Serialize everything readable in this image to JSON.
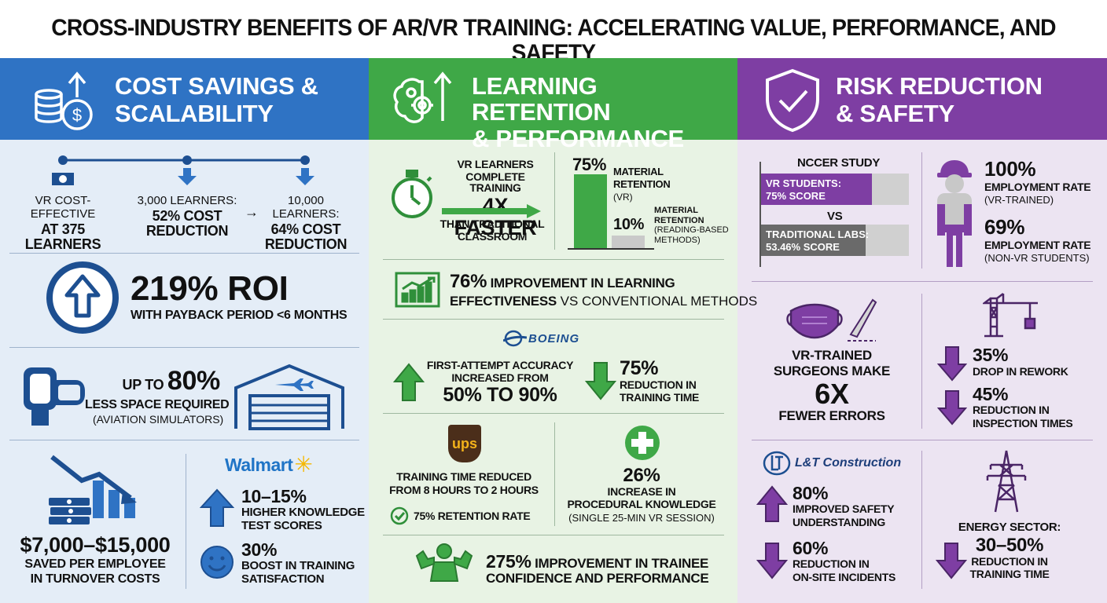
{
  "title": "CROSS-INDUSTRY BENEFITS OF AR/VR TRAINING: ACCELERATING VALUE, PERFORMANCE, AND SAFETY",
  "colors": {
    "blue": "#2f73c4",
    "green": "#3fa847",
    "purple": "#7e3ea3",
    "blue_bg": "#e4edf7",
    "green_bg": "#e8f3e4",
    "purple_bg": "#ece4f2",
    "dark_blue": "#1d4f91"
  },
  "col1": {
    "header": {
      "line1": "COST SAVINGS &",
      "line2": "SCALABILITY",
      "icon": "coins-dollar-arrow-icon"
    },
    "timeline": [
      {
        "line1": "VR COST-EFFECTIVE",
        "line2": "AT 375",
        "line3": "LEARNERS"
      },
      {
        "line1": "3,000 LEARNERS:",
        "line2": "52% COST",
        "line3": "REDUCTION"
      },
      {
        "line1": "10,000 LEARNERS:",
        "line2": "64% COST",
        "line3": "REDUCTION"
      }
    ],
    "roi": {
      "big": "219% ROI",
      "sub": "WITH PAYBACK PERIOD <6 MONTHS"
    },
    "space": {
      "prefix": "UP TO",
      "big": "80%",
      "line2": "LESS SPACE REQUIRED",
      "line3": "(AVIATION SIMULATORS)"
    },
    "turnover": {
      "big": "$7,000–$15,000",
      "line2": "SAVED PER EMPLOYEE",
      "line3": "IN TURNOVER COSTS"
    },
    "walmart": {
      "logo": "Walmart",
      "stat1": "10–15%",
      "stat1_l1": "HIGHER KNOWLEDGE",
      "stat1_l2": "TEST SCORES",
      "stat2": "30%",
      "stat2_l1": "BOOST IN TRAINING",
      "stat2_l2": "SATISFACTION"
    }
  },
  "col2": {
    "header": {
      "line1": "LEARNING RETENTION",
      "line2": "& PERFORMANCE",
      "icon": "brain-gear-icon"
    },
    "faster": {
      "l1": "VR LEARNERS",
      "l2": "COMPLETE TRAINING",
      "big": "4X FASTER",
      "l3": "THAN TRADITIONAL",
      "l4": "CLASSROOM"
    },
    "retention": {
      "vr_value": "75%",
      "vr_l1": "MATERIAL",
      "vr_l2": "RETENTION",
      "vr_l3": "(VR)",
      "rb_value": "10%",
      "rb_l1": "MATERIAL",
      "rb_l2": "RETENTION",
      "rb_l3": "(READING-BASED",
      "rb_l4": "METHODS)"
    },
    "improve": {
      "big": "76%",
      "l1": " IMPROVEMENT IN LEARNING",
      "l2": "EFFECTIVENESS",
      "l3": " VS CONVENTIONAL METHODS"
    },
    "boeing": {
      "logo": "BOEING",
      "acc_l1": "FIRST-ATTEMPT ACCURACY",
      "acc_l2": "INCREASED FROM",
      "acc_big": "50% TO 90%",
      "time_big": "75%",
      "time_l1": "REDUCTION IN",
      "time_l2": "TRAINING TIME"
    },
    "ups": {
      "logo": "ups",
      "l1": "TRAINING TIME REDUCED",
      "l2": "FROM 8 HOURS TO 2 HOURS",
      "retention": "75% RETENTION RATE"
    },
    "proc": {
      "big": "26%",
      "l1": "INCREASE IN",
      "l2": "PROCEDURAL KNOWLEDGE",
      "l3": "(SINGLE 25-MIN VR SESSION)"
    },
    "confidence": {
      "big": "275%",
      "l1": " IMPROVEMENT IN TRAINEE",
      "l2": "CONFIDENCE AND PERFORMANCE"
    }
  },
  "col3": {
    "header": {
      "line1": "RISK REDUCTION",
      "line2": "& SAFETY",
      "icon": "shield-check-icon"
    },
    "nccer": {
      "title": "NCCER STUDY",
      "vr_l1": "VR STUDENTS:",
      "vr_l2": "75% SCORE",
      "vr_value": 75,
      "vs": "VS",
      "trad_l1": "TRADITIONAL LABS:",
      "trad_l2": "53.46% SCORE",
      "trad_value": 53.46
    },
    "employment": {
      "v1": "100%",
      "l1a": "EMPLOYMENT RATE",
      "l1b": "(VR-TRAINED)",
      "v2": "69%",
      "l2a": "EMPLOYMENT RATE",
      "l2b": "(NON-VR STUDENTS)"
    },
    "surgeons": {
      "l1": "VR-TRAINED",
      "l2": "SURGEONS MAKE",
      "big": "6X",
      "l3": "FEWER ERRORS"
    },
    "rework": {
      "v1": "35%",
      "l1": "DROP IN REWORK",
      "v2": "45%",
      "l2a": "REDUCTION IN",
      "l2b": "INSPECTION TIMES"
    },
    "lt": {
      "logo": "L&T Construction",
      "v1": "80%",
      "l1a": "IMPROVED SAFETY",
      "l1b": "UNDERSTANDING",
      "v2": "60%",
      "l2a": "REDUCTION IN",
      "l2b": "ON-SITE INCIDENTS"
    },
    "energy": {
      "l1": "ENERGY SECTOR:",
      "big": "30–50%",
      "l2": "REDUCTION IN",
      "l3": "TRAINING TIME"
    }
  }
}
